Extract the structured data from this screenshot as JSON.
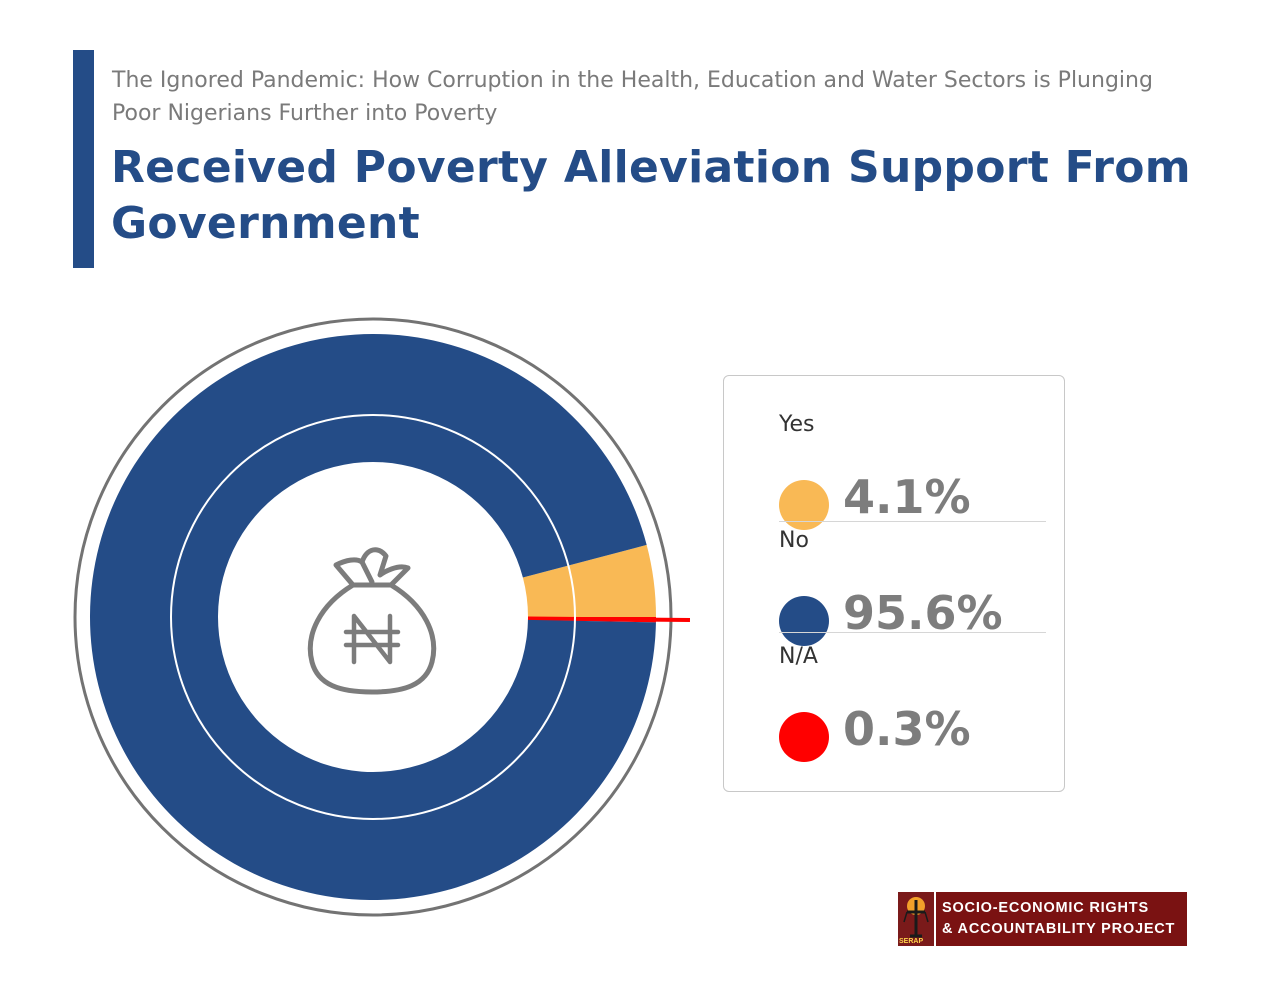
{
  "header": {
    "subtitle": "The Ignored Pandemic: How Corruption in the Health, Education and Water Sectors is Plunging Poor Nigerians Further into Poverty",
    "title": "Received Poverty Alleviation Support From Government"
  },
  "colors": {
    "accent": "#244c87",
    "yes": "#f9b955",
    "no": "#244c87",
    "na": "#ff0000",
    "value_text": "#7d7d7d",
    "logo_bg": "#7a1212"
  },
  "chart_data": {
    "type": "pie",
    "style": "donut",
    "center_icon": "money-bag-naira-icon",
    "series": [
      {
        "name": "Yes",
        "value": 4.1,
        "label": "4.1%",
        "color": "#f9b955"
      },
      {
        "name": "No",
        "value": 95.6,
        "label": "95.6%",
        "color": "#244c87"
      },
      {
        "name": "N/A",
        "value": 0.3,
        "label": "0.3%",
        "color": "#ff0000"
      }
    ],
    "legend_position": "right"
  },
  "logo": {
    "line1": "SOCIO-ECONOMIC RIGHTS",
    "line2": "& ACCOUNTABILITY PROJECT",
    "acronym": "SERAP"
  }
}
